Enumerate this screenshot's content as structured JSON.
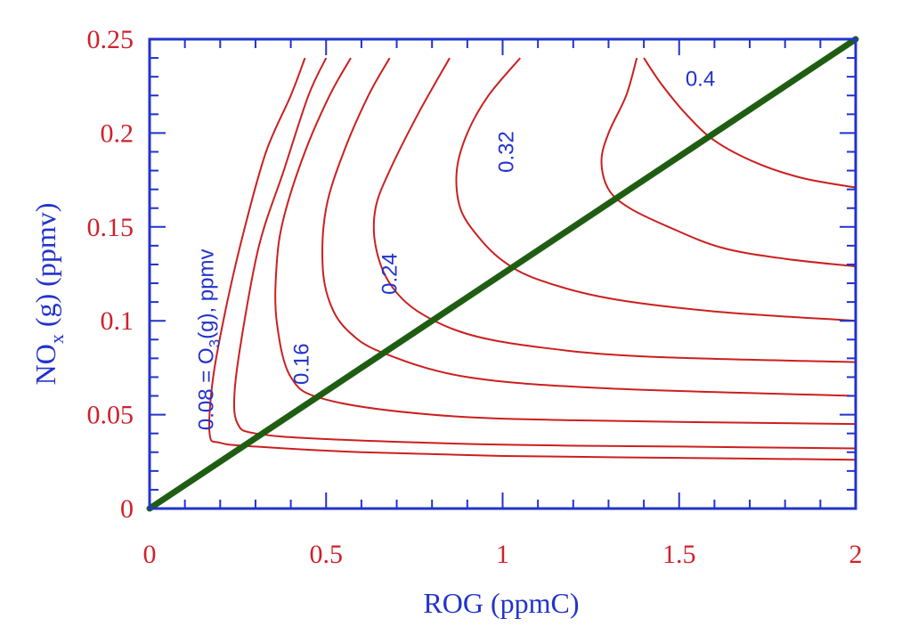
{
  "chart_data": {
    "type": "line",
    "title": "",
    "xlabel": "ROG (ppmC)",
    "ylabel_main": "NO",
    "ylabel_sub": "x",
    "ylabel_rest": " (g) (ppmv)",
    "xlim": [
      0,
      2
    ],
    "ylim": [
      0,
      0.25
    ],
    "x_ticks": [
      "0",
      "0.5",
      "1",
      "1.5",
      "2"
    ],
    "y_ticks": [
      "0",
      "0.05",
      "0.1",
      "0.15",
      "0.2",
      "0.25"
    ],
    "grid": false,
    "colors": {
      "axis": "#2233cc",
      "contour": "#cc1f1f",
      "ratio_line": "#1f5e12",
      "tick_label": "#d0202a",
      "axis_title": "#2233cc",
      "contour_label": "#2233cc"
    },
    "ratio_line": {
      "x": [
        0,
        2
      ],
      "y": [
        0,
        0.25
      ]
    },
    "contour_labels": [
      {
        "text_main": "0.08 = O",
        "text_sub": "3",
        "text_rest": "(g), ppmv",
        "x": 0.18,
        "y": 0.09,
        "rotate": -90
      },
      {
        "text_main": "0.16",
        "x": 0.45,
        "y": 0.077,
        "rotate": -90
      },
      {
        "text_main": "0.24",
        "x": 0.7,
        "y": 0.125,
        "rotate": -90
      },
      {
        "text_main": "0.32",
        "x": 1.03,
        "y": 0.19,
        "rotate": -90
      },
      {
        "text_main": "0.4",
        "x": 1.56,
        "y": 0.225,
        "rotate": 0
      }
    ],
    "series": [
      {
        "x": [
          0.44,
          0.4,
          0.33,
          0.27,
          0.22,
          0.18,
          0.17,
          0.2,
          0.3,
          0.6,
          1.0,
          1.5,
          2.0
        ],
        "y": [
          0.24,
          0.22,
          0.19,
          0.15,
          0.11,
          0.07,
          0.04,
          0.035,
          0.033,
          0.03,
          0.028,
          0.027,
          0.026
        ]
      },
      {
        "x": [
          0.5,
          0.45,
          0.38,
          0.31,
          0.26,
          0.24,
          0.25,
          0.3,
          0.5,
          1.0,
          1.5,
          2.0
        ],
        "y": [
          0.24,
          0.22,
          0.18,
          0.14,
          0.09,
          0.06,
          0.045,
          0.04,
          0.037,
          0.034,
          0.033,
          0.032
        ]
      },
      {
        "x": [
          0.57,
          0.51,
          0.44,
          0.38,
          0.36,
          0.36,
          0.4,
          0.5,
          0.8,
          1.2,
          2.0
        ],
        "y": [
          0.24,
          0.22,
          0.19,
          0.155,
          0.13,
          0.1,
          0.07,
          0.058,
          0.05,
          0.047,
          0.045
        ]
      },
      {
        "x": [
          0.68,
          0.62,
          0.55,
          0.5,
          0.49,
          0.51,
          0.56,
          0.66,
          0.9,
          1.3,
          2.0
        ],
        "y": [
          0.24,
          0.22,
          0.19,
          0.16,
          0.13,
          0.11,
          0.095,
          0.083,
          0.07,
          0.064,
          0.06
        ]
      },
      {
        "x": [
          0.85,
          0.76,
          0.68,
          0.64,
          0.64,
          0.68,
          0.76,
          0.9,
          1.1,
          1.4,
          2.0
        ],
        "y": [
          0.24,
          0.21,
          0.18,
          0.16,
          0.14,
          0.12,
          0.105,
          0.093,
          0.086,
          0.081,
          0.078
        ]
      },
      {
        "x": [
          1.05,
          0.96,
          0.9,
          0.87,
          0.88,
          0.93,
          1.0,
          1.1,
          1.3,
          1.6,
          2.0
        ],
        "y": [
          0.24,
          0.22,
          0.2,
          0.18,
          0.16,
          0.145,
          0.132,
          0.122,
          0.112,
          0.105,
          0.1
        ]
      },
      {
        "x": [
          1.38,
          1.35,
          1.3,
          1.28,
          1.3,
          1.36,
          1.47,
          1.62,
          1.8,
          2.0
        ],
        "y": [
          0.24,
          0.22,
          0.2,
          0.185,
          0.17,
          0.16,
          0.15,
          0.139,
          0.133,
          0.129
        ]
      },
      {
        "x": [
          1.4,
          1.45,
          1.52,
          1.6,
          1.72,
          1.85,
          2.0
        ],
        "y": [
          0.24,
          0.226,
          0.21,
          0.196,
          0.184,
          0.176,
          0.171
        ]
      }
    ]
  }
}
